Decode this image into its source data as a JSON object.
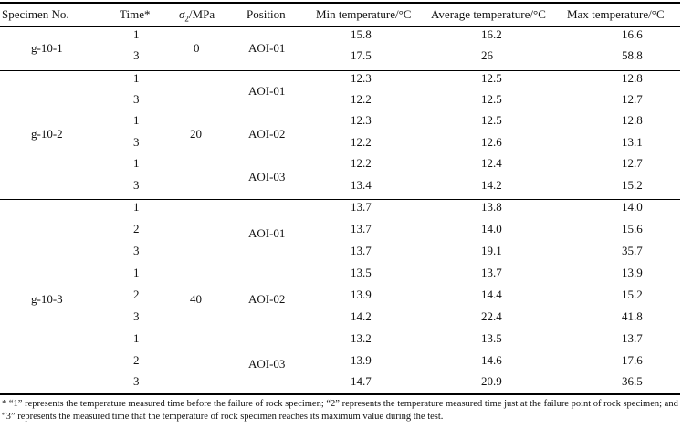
{
  "table": {
    "headers": {
      "specimen": "Specimen No.",
      "time": "Time*",
      "sigma_symbol": "σ",
      "sigma_sub": "2",
      "sigma_unit": "/MPa",
      "position": "Position",
      "min": "Min temperature/°C",
      "avg": "Average temperature/°C",
      "max": "Max temperature/°C"
    },
    "groups": [
      {
        "specimen": "g-10-1",
        "sigma": "0"
      },
      {
        "specimen": "g-10-2",
        "sigma": "20"
      },
      {
        "specimen": "g-10-3",
        "sigma": "40"
      }
    ],
    "positions": [
      "AOI-01",
      "AOI-01",
      "AOI-02",
      "AOI-03",
      "AOI-01",
      "AOI-02",
      "AOI-03"
    ],
    "rows": [
      {
        "time": "1",
        "min": "15.8",
        "avg": "16.2",
        "max": "16.6"
      },
      {
        "time": "3",
        "min": "17.5",
        "avg": "26",
        "max": "58.8"
      },
      {
        "time": "1",
        "min": "12.3",
        "avg": "12.5",
        "max": "12.8"
      },
      {
        "time": "3",
        "min": "12.2",
        "avg": "12.5",
        "max": "12.7"
      },
      {
        "time": "1",
        "min": "12.3",
        "avg": "12.5",
        "max": "12.8"
      },
      {
        "time": "3",
        "min": "12.2",
        "avg": "12.6",
        "max": "13.1"
      },
      {
        "time": "1",
        "min": "12.2",
        "avg": "12.4",
        "max": "12.7"
      },
      {
        "time": "3",
        "min": "13.4",
        "avg": "14.2",
        "max": "15.2"
      },
      {
        "time": "1",
        "min": "13.7",
        "avg": "13.8",
        "max": "14.0"
      },
      {
        "time": "2",
        "min": "13.7",
        "avg": "14.0",
        "max": "15.6"
      },
      {
        "time": "3",
        "min": "13.7",
        "avg": "19.1",
        "max": "35.7"
      },
      {
        "time": "1",
        "min": "13.5",
        "avg": "13.7",
        "max": "13.9"
      },
      {
        "time": "2",
        "min": "13.9",
        "avg": "14.4",
        "max": "15.2"
      },
      {
        "time": "3",
        "min": "14.2",
        "avg": "22.4",
        "max": "41.8"
      },
      {
        "time": "1",
        "min": "13.2",
        "avg": "13.5",
        "max": "13.7"
      },
      {
        "time": "2",
        "min": "13.9",
        "avg": "14.6",
        "max": "17.6"
      },
      {
        "time": "3",
        "min": "14.7",
        "avg": "20.9",
        "max": "36.5"
      }
    ]
  },
  "footnote": "* “1” represents the temperature measured time before the failure of rock specimen; “2” represents the temperature measured time just at the failure point of rock specimen; and “3” represents the measured time that the temperature of rock specimen reaches its maximum value during the test."
}
